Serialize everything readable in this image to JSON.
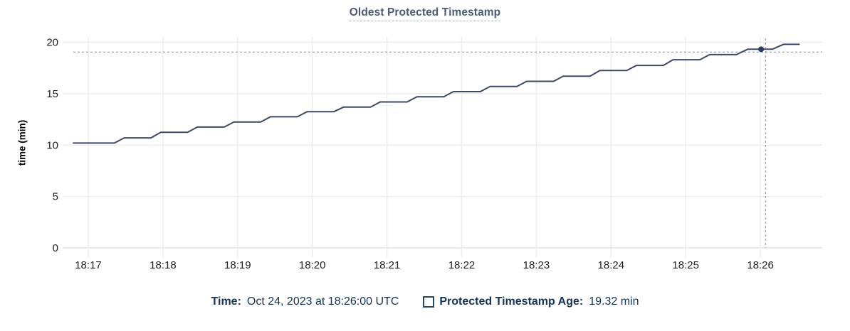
{
  "header": {
    "title": "Oldest Protected Timestamp"
  },
  "chart_data": {
    "type": "line",
    "title": "Oldest Protected Timestamp",
    "xlabel": "",
    "ylabel": "time (min)",
    "ylim": [
      0,
      20
    ],
    "y_ticks": [
      0,
      5,
      10,
      15,
      20
    ],
    "x_tick_labels": [
      "18:17",
      "18:18",
      "18:19",
      "18:20",
      "18:21",
      "18:22",
      "18:23",
      "18:24",
      "18:25",
      "18:26"
    ],
    "grid": true,
    "legend_position": "bottom",
    "series": [
      {
        "name": "Protected Timestamp Age",
        "unit": "min",
        "color": "#3b4a63",
        "points": [
          [
            -0.2,
            10.2
          ],
          [
            0.35,
            10.2
          ],
          [
            0.48,
            10.7
          ],
          [
            0.84,
            10.7
          ],
          [
            0.97,
            11.25
          ],
          [
            1.33,
            11.25
          ],
          [
            1.46,
            11.75
          ],
          [
            1.82,
            11.75
          ],
          [
            1.95,
            12.25
          ],
          [
            2.31,
            12.25
          ],
          [
            2.44,
            12.75
          ],
          [
            2.8,
            12.75
          ],
          [
            2.93,
            13.25
          ],
          [
            3.29,
            13.25
          ],
          [
            3.42,
            13.7
          ],
          [
            3.78,
            13.7
          ],
          [
            3.91,
            14.2
          ],
          [
            4.27,
            14.2
          ],
          [
            4.4,
            14.7
          ],
          [
            4.76,
            14.7
          ],
          [
            4.89,
            15.2
          ],
          [
            5.25,
            15.2
          ],
          [
            5.38,
            15.7
          ],
          [
            5.74,
            15.7
          ],
          [
            5.87,
            16.2
          ],
          [
            6.23,
            16.2
          ],
          [
            6.36,
            16.7
          ],
          [
            6.72,
            16.7
          ],
          [
            6.85,
            17.25
          ],
          [
            7.21,
            17.25
          ],
          [
            7.34,
            17.75
          ],
          [
            7.7,
            17.75
          ],
          [
            7.83,
            18.3
          ],
          [
            8.19,
            18.3
          ],
          [
            8.32,
            18.8
          ],
          [
            8.68,
            18.8
          ],
          [
            8.83,
            19.32
          ],
          [
            9.16,
            19.32
          ],
          [
            9.31,
            19.8
          ],
          [
            9.52,
            19.8
          ]
        ]
      }
    ],
    "hover": {
      "time": "Oct 24, 2023 at 18:26:00 UTC",
      "t": 9.01,
      "value": 19.32,
      "cursor_t": 9.07,
      "cursor_value": 19.04,
      "marker_color": "#2c3d5a",
      "crosshair_color": "#9bb0c2"
    }
  },
  "footer": {
    "time_label": "Time:",
    "time_value": "Oct 24, 2023 at 18:26:00 UTC",
    "series_label": "Protected Timestamp Age:",
    "series_value": "19.32 min"
  },
  "colors": {
    "title": "#4a5b78",
    "title_underline": "#a9b7c6",
    "legend_text": "#16335a",
    "checkbox_border": "#254a68",
    "grid": "#ededed",
    "axis_zero": "#e2e2e2",
    "axis_text": "#1f1f1f",
    "line": "#3b4a63"
  }
}
